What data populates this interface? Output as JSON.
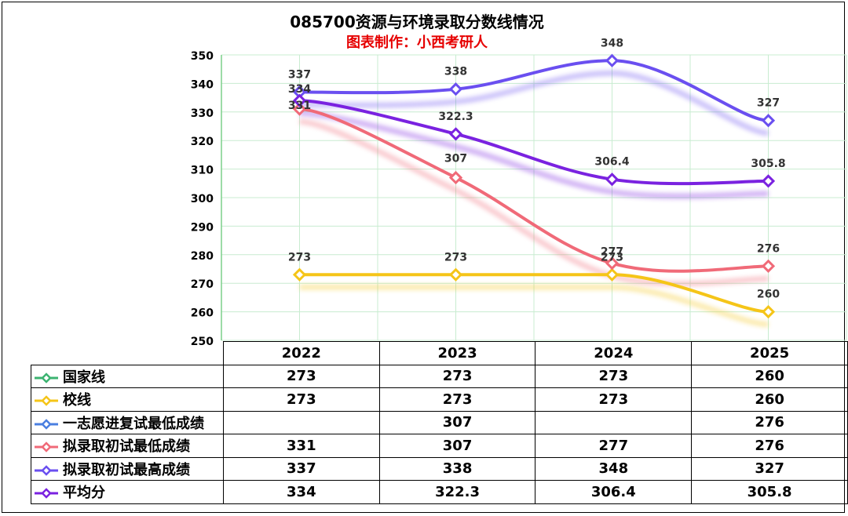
{
  "title": "085700资源与环境录取分数线情况",
  "subtitle": "图表制作：小西考研人",
  "colors": {
    "national": "#3cb371",
    "school": "#f5c518",
    "first_choice": "#4a7fe0",
    "min_initial": "#f06a78",
    "max_initial": "#6a4ff0",
    "average": "#7a22e0",
    "grid": "#c8ecd0"
  },
  "chart_data": {
    "type": "line",
    "title": "085700资源与环境录取分数线情况",
    "subtitle": "图表制作：小西考研人",
    "categories": [
      "2022",
      "2023",
      "2024",
      "2025"
    ],
    "yticks": [
      "350",
      "340",
      "330",
      "320",
      "310",
      "300",
      "290",
      "280",
      "270",
      "260",
      "250"
    ],
    "ylim": [
      250,
      350
    ],
    "grid": true,
    "series": [
      {
        "name": "国家线",
        "values": [
          273,
          273,
          273,
          260
        ],
        "color": "#3cb371",
        "plotted": false
      },
      {
        "name": "校线",
        "values": [
          273,
          273,
          273,
          260
        ],
        "color": "#f5c518",
        "plotted": true,
        "labels": [
          "273",
          "273",
          "273",
          "260"
        ]
      },
      {
        "name": "一志愿进复试最低成绩",
        "values": [
          null,
          307,
          null,
          276
        ],
        "color": "#4a7fe0",
        "plotted": false
      },
      {
        "name": "拟录取初试最低成绩",
        "values": [
          331,
          307,
          277,
          276
        ],
        "color": "#f06a78",
        "plotted": true,
        "labels": [
          "331",
          "307",
          "277",
          "276"
        ]
      },
      {
        "name": "拟录取初试最高成绩",
        "values": [
          337,
          338,
          348,
          327
        ],
        "color": "#6a4ff0",
        "plotted": true,
        "labels": [
          "337",
          "338",
          "348",
          "327"
        ]
      },
      {
        "name": "平均分",
        "values": [
          334,
          322.3,
          306.4,
          305.8
        ],
        "color": "#7a22e0",
        "plotted": true,
        "labels": [
          "334",
          "322.3",
          "306.4",
          "305.8"
        ]
      }
    ]
  },
  "table": {
    "header": [
      "2022",
      "2023",
      "2024",
      "2025"
    ],
    "rows": [
      {
        "label": "国家线",
        "cells": [
          "273",
          "273",
          "273",
          "260"
        ]
      },
      {
        "label": "校线",
        "cells": [
          "273",
          "273",
          "273",
          "260"
        ]
      },
      {
        "label": "一志愿进复试最低成绩",
        "cells": [
          "",
          "307",
          "",
          "276"
        ]
      },
      {
        "label": "拟录取初试最低成绩",
        "cells": [
          "331",
          "307",
          "277",
          "276"
        ]
      },
      {
        "label": "拟录取初试最高成绩",
        "cells": [
          "337",
          "338",
          "348",
          "327"
        ]
      },
      {
        "label": "平均分",
        "cells": [
          "334",
          "322.3",
          "306.4",
          "305.8"
        ]
      }
    ]
  }
}
